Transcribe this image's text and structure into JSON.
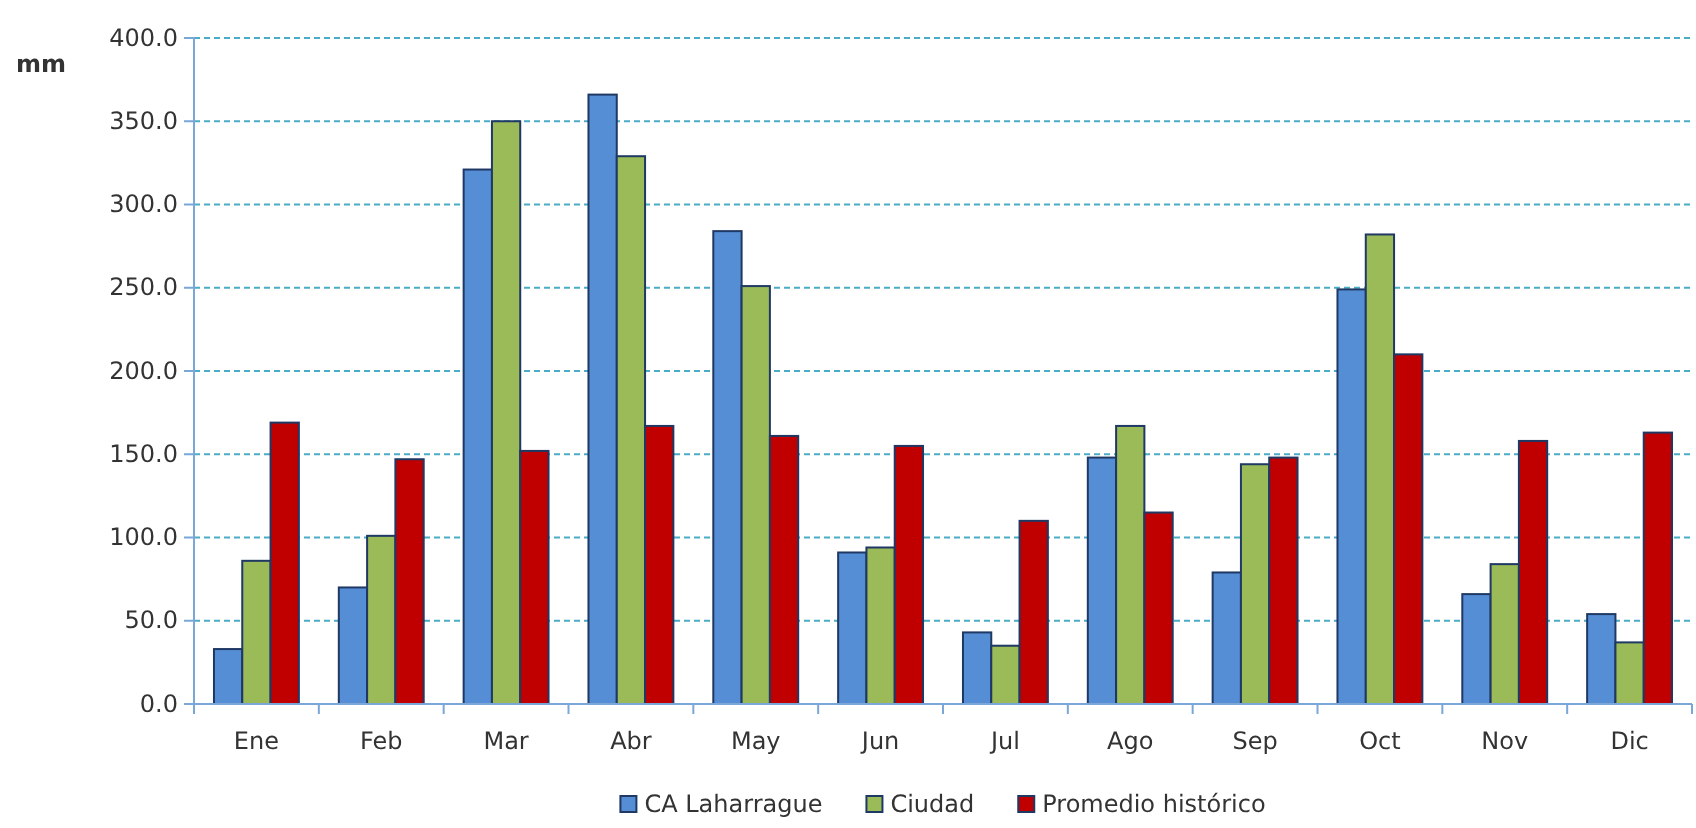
{
  "chart_data": {
    "type": "bar",
    "ylabel": "mm",
    "categories": [
      "Ene",
      "Feb",
      "Mar",
      "Abr",
      "May",
      "Jun",
      "Jul",
      "Ago",
      "Sep",
      "Oct",
      "Nov",
      "Dic"
    ],
    "series": [
      {
        "name": "CA Laharrague",
        "color": "#558ed5",
        "values": [
          33,
          70,
          321,
          366,
          284,
          91,
          43,
          148,
          79,
          249,
          66,
          54
        ]
      },
      {
        "name": "Ciudad",
        "color": "#9bbb59",
        "values": [
          86,
          101,
          350,
          329,
          251,
          94,
          35,
          167,
          144,
          282,
          84,
          37
        ]
      },
      {
        "name": "Promedio histórico",
        "color": "#c00000",
        "values": [
          169,
          147,
          152,
          167,
          161,
          155,
          110,
          115,
          148,
          210,
          158,
          163
        ]
      }
    ],
    "ylim": [
      0,
      400
    ],
    "yticks": [
      {
        "value": 0,
        "label": "0.0"
      },
      {
        "value": 50,
        "label": "50.0"
      },
      {
        "value": 100,
        "label": "100.0"
      },
      {
        "value": 150,
        "label": "150.0"
      },
      {
        "value": 200,
        "label": "200.0"
      },
      {
        "value": 250,
        "label": "250.0"
      },
      {
        "value": 300,
        "label": "300.0"
      },
      {
        "value": 350,
        "label": "350.0"
      },
      {
        "value": 400,
        "label": "400.0"
      }
    ],
    "grid": "y",
    "legend": "bottom"
  }
}
